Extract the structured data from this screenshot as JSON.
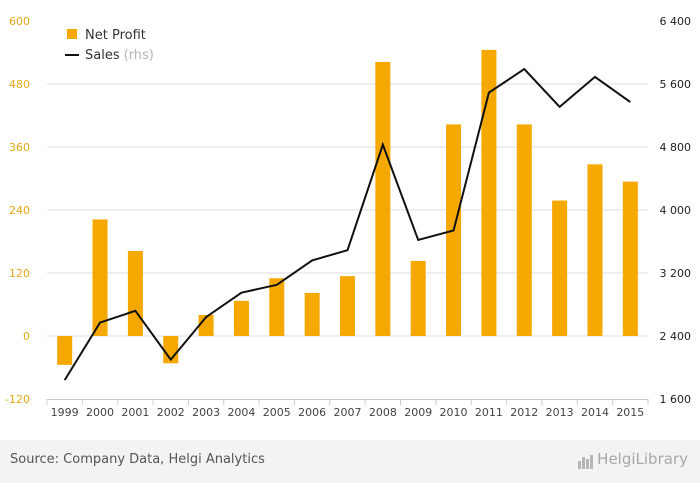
{
  "chart_data": {
    "type": "bar",
    "categories": [
      "1999",
      "2000",
      "2001",
      "2002",
      "2003",
      "2004",
      "2005",
      "2006",
      "2007",
      "2008",
      "2009",
      "2010",
      "2011",
      "2012",
      "2013",
      "2014",
      "2015"
    ],
    "series": [
      {
        "name": "Net Profit",
        "type": "bar",
        "axis": "left",
        "values": [
          -55,
          222,
          162,
          -52,
          40,
          67,
          110,
          82,
          114,
          522,
          143,
          403,
          545,
          403,
          258,
          327,
          294
        ]
      },
      {
        "name": "Sales",
        "type": "line",
        "axis": "right",
        "values": [
          1840,
          2570,
          2720,
          2100,
          2640,
          2950,
          3050,
          3360,
          3490,
          4830,
          3620,
          3740,
          5490,
          5790,
          5310,
          5690,
          5370
        ]
      }
    ],
    "left_axis": {
      "min": -120,
      "max": 600,
      "ticks": [
        "-120",
        "0",
        "120",
        "240",
        "360",
        "480",
        "600"
      ]
    },
    "right_axis": {
      "min": 1600,
      "max": 6400,
      "ticks": [
        "1 600",
        "2 400",
        "3 200",
        "4 000",
        "4 800",
        "5 600",
        "6 400"
      ]
    },
    "legend": {
      "position": "top-left",
      "items": [
        {
          "label": "Net Profit"
        },
        {
          "label": "Sales",
          "suffix": "(rhs)"
        }
      ]
    },
    "colors": {
      "bar": "#f5a800",
      "line": "#111111",
      "left_tick": "#e6a817",
      "right_tick": "#222222",
      "grid": "#dddddd"
    }
  },
  "footer": {
    "source": "Source: Company Data, Helgi Analytics",
    "logo": "HelgiLibrary"
  }
}
